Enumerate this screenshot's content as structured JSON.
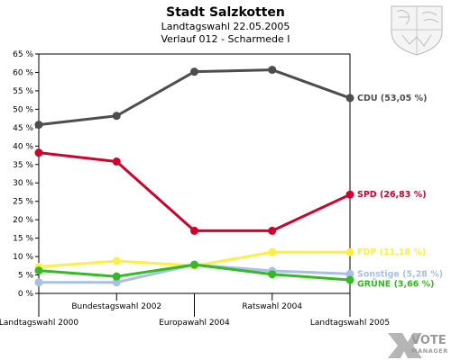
{
  "header": {
    "title": "Stadt Salzkotten",
    "subtitle1": "Landtagswahl 22.05.2005",
    "subtitle2": "Verlauf 012 - Scharmede I"
  },
  "logo": {
    "text_top": "VOTE",
    "text_bottom": "MANAGER",
    "icon": "vote-x-icon"
  },
  "crest": {
    "icon": "coat-of-arms-icon"
  },
  "chart_data": {
    "type": "line",
    "ylim": [
      0,
      65
    ],
    "ytick_step": 5,
    "yunit": " %",
    "categories": [
      "Landtagswahl 2000",
      "Bundestagswahl 2002",
      "Europawahl 2004",
      "Ratswahl 2004",
      "Landtagswahl 2005"
    ],
    "grid": false,
    "series": [
      {
        "name": "CDU",
        "label": "CDU (53,05 %)",
        "color": "#4d4d4d",
        "values": [
          45.8,
          48.2,
          60.2,
          60.7,
          53.05
        ]
      },
      {
        "name": "SPD",
        "label": "SPD (26,83 %)",
        "color": "#d2002b",
        "values": [
          38.2,
          35.8,
          17.0,
          17.0,
          26.83
        ]
      },
      {
        "name": "FDP",
        "label": "FDP (11,18 %)",
        "color": "#ffee44",
        "values": [
          7.2,
          8.8,
          7.5,
          11.2,
          11.18
        ]
      },
      {
        "name": "Sonstige",
        "label": "Sonstige (5,28 %)",
        "color": "#a8bfe6",
        "values": [
          3.0,
          3.0,
          7.8,
          6.1,
          5.28
        ]
      },
      {
        "name": "GRÜNE",
        "label": "GRÜNE (3,66 %)",
        "color": "#33bb22",
        "values": [
          6.2,
          4.6,
          7.8,
          5.2,
          3.66
        ]
      }
    ]
  }
}
